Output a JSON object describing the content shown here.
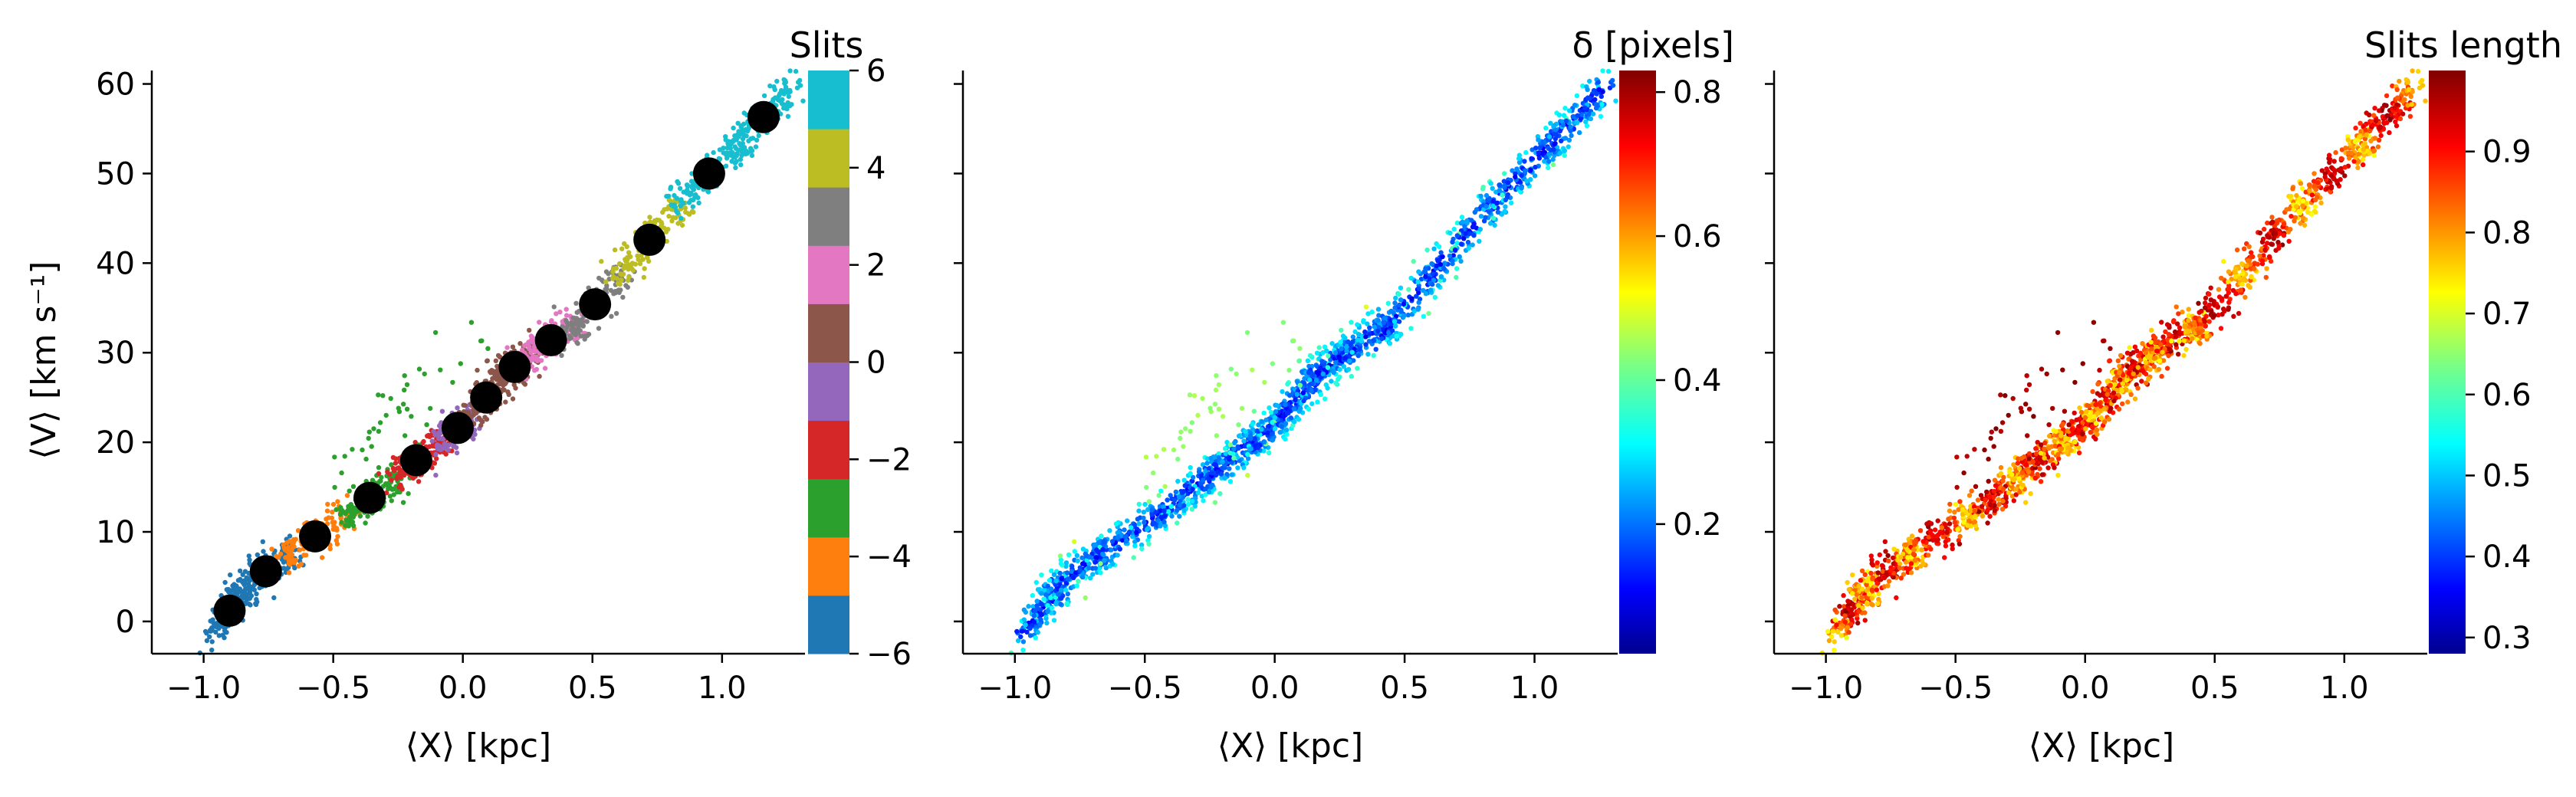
{
  "figure": {
    "panels": [
      {
        "id": "slits",
        "xlabel": "⟨X⟩ [kpc]",
        "ylabel": "⟨V⟩ [km s⁻¹]",
        "xticks": [
          "−1.0",
          "−0.5",
          "0.0",
          "0.5",
          "1.0"
        ],
        "yticks": [
          "0",
          "10",
          "20",
          "30",
          "40",
          "50",
          "60"
        ],
        "colorbar": {
          "title": "Slits",
          "ticks": [
            "−6",
            "−4",
            "−2",
            "0",
            "2",
            "4",
            "6"
          ],
          "colors": [
            "#1f77b4",
            "#ff7f0e",
            "#2ca02c",
            "#d62728",
            "#9467bd",
            "#8c564b",
            "#e377c2",
            "#7f7f7f",
            "#bcbd22",
            "#17becf"
          ]
        }
      },
      {
        "id": "delta",
        "xlabel": "⟨X⟩ [kpc]",
        "xticks": [
          "−1.0",
          "−0.5",
          "0.0",
          "0.5",
          "1.0"
        ],
        "colorbar": {
          "title": "δ [pixels]",
          "ticks": [
            "0.2",
            "0.4",
            "0.6",
            "0.8"
          ],
          "colormap": "jet"
        }
      },
      {
        "id": "length",
        "xlabel": "⟨X⟩ [kpc]",
        "xticks": [
          "−1.0",
          "−0.5",
          "0.0",
          "0.5",
          "1.0"
        ],
        "colorbar": {
          "title": "Slits length",
          "ticks": [
            "0.3",
            "0.4",
            "0.5",
            "0.6",
            "0.7",
            "0.8",
            "0.9"
          ],
          "colormap": "jet"
        }
      }
    ]
  },
  "chart_data": [
    {
      "type": "scatter",
      "title": "",
      "xlabel": "⟨X⟩ [kpc]",
      "ylabel": "⟨V⟩ [km s⁻¹]",
      "xlim": [
        -1.2,
        1.32
      ],
      "ylim": [
        -3.6,
        61.5
      ],
      "colorbar_label": "Slits",
      "colorbar_range": [
        -6,
        6
      ],
      "series": [
        {
          "name": "slit centres",
          "x": [
            -0.9,
            -0.76,
            -0.57,
            -0.36,
            -0.18,
            -0.02,
            0.09,
            0.2,
            0.34,
            0.51,
            0.72,
            0.95,
            1.16
          ],
          "y": [
            1.2,
            5.6,
            9.5,
            13.8,
            18.0,
            21.6,
            25.0,
            28.4,
            31.4,
            35.4,
            42.6,
            50.0,
            56.3
          ]
        }
      ],
      "slit_bands": {
        "x": [
          -0.9,
          -0.76,
          -0.57,
          -0.36,
          -0.18,
          -0.02,
          0.09,
          0.2,
          0.34,
          0.51,
          0.72,
          0.95,
          1.16
        ],
        "y": [
          1.2,
          5.6,
          9.5,
          13.8,
          18.0,
          21.6,
          25.0,
          28.4,
          31.4,
          35.4,
          42.6,
          50.0,
          56.3
        ],
        "color_index": [
          0,
          0,
          1,
          2,
          3,
          4,
          5,
          5,
          6,
          7,
          8,
          9,
          9
        ]
      }
    },
    {
      "type": "scatter",
      "title": "",
      "xlabel": "⟨X⟩ [kpc]",
      "xlim": [
        -1.2,
        1.32
      ],
      "ylim": [
        -3.6,
        61.5
      ],
      "colorbar_label": "δ [pixels]",
      "colorbar_range": [
        0.02,
        0.83
      ]
    },
    {
      "type": "scatter",
      "title": "",
      "xlabel": "⟨X⟩ [kpc]",
      "xlim": [
        -1.2,
        1.32
      ],
      "ylim": [
        -3.6,
        61.5
      ],
      "colorbar_label": "Slits length",
      "colorbar_range": [
        0.28,
        1.0
      ]
    }
  ]
}
